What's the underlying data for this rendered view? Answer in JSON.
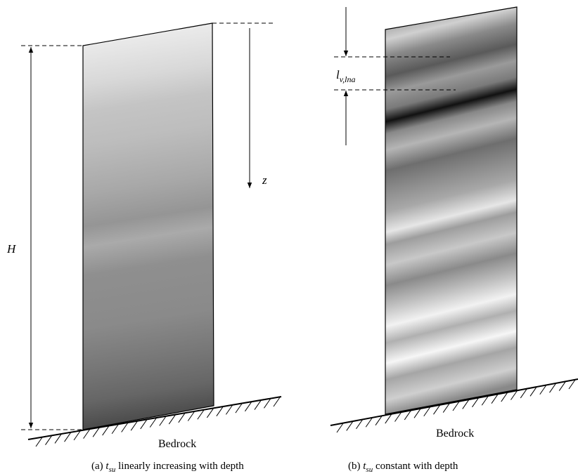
{
  "labels": {
    "height": "H",
    "depth": "z",
    "correlation_length": {
      "symbol": "l",
      "subscript": "v,lna"
    }
  },
  "panels": [
    {
      "ground": "Bedrock",
      "caption": {
        "prefix": "(a)",
        "symbol": "t",
        "subscript": "su",
        "suffix": "linearly increasing with depth"
      }
    },
    {
      "ground": "Bedrock",
      "caption": {
        "prefix": "(b)",
        "symbol": "t",
        "subscript": "su",
        "suffix": "constant with depth"
      }
    }
  ]
}
